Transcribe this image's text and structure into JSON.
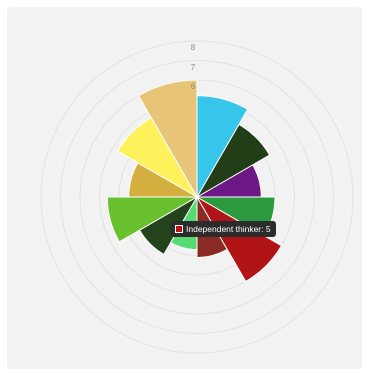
{
  "chart_data": {
    "type": "polar-area",
    "title": "",
    "r_ticks": [
      "6",
      "7",
      "8"
    ],
    "r_max": 8,
    "grid": true,
    "values": [
      6.0,
      4.7,
      3.5,
      4.6,
      3.4,
      2.7,
      3.1,
      5.0,
      4.0,
      3.3,
      4.3,
      5.2
    ],
    "colors": [
      "#e8c478",
      "#fdf25c",
      "#d4ae3e",
      "#6ac12f",
      "#23431a",
      "#55dd74",
      "#8b2a25",
      "#b01416",
      "#2c9a3e",
      "#6c1886",
      "#213e16",
      "#36c6eb"
    ],
    "tooltip": {
      "label": "Independent thinker: 5",
      "color": "#b01416"
    }
  }
}
